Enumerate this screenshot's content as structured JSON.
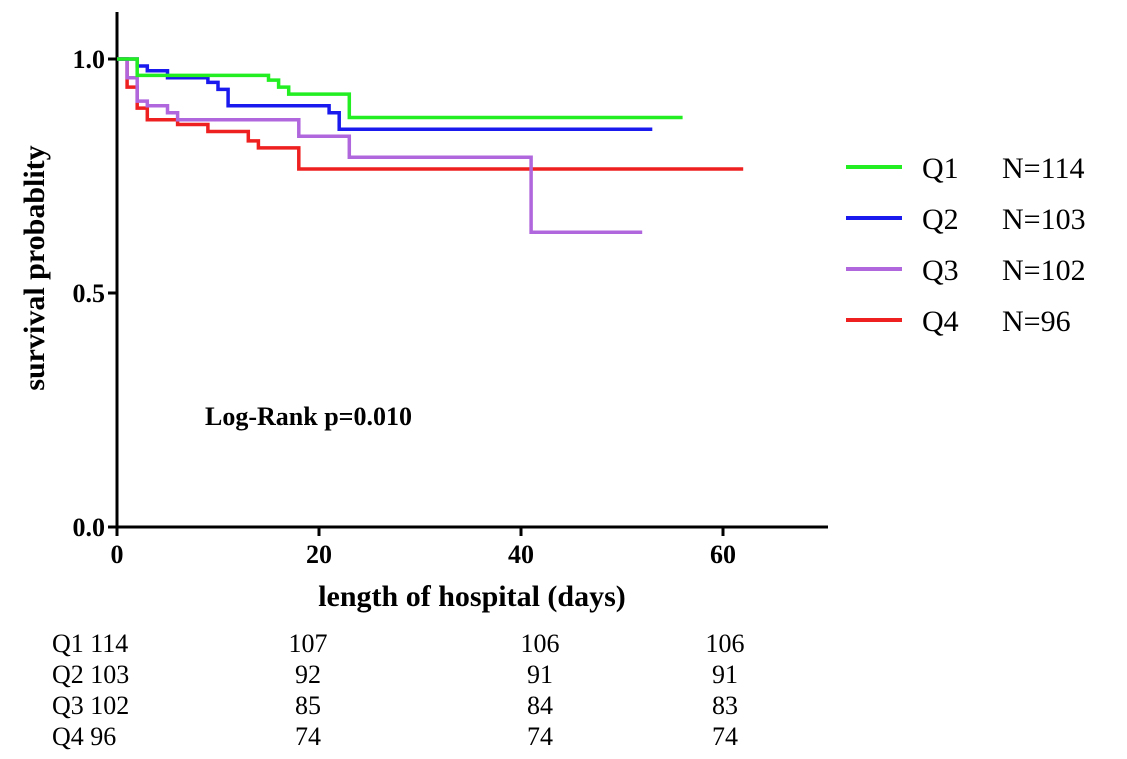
{
  "chart_data": {
    "type": "line",
    "subtype": "kaplan-meier step",
    "xlabel": "length of hospital (days)",
    "ylabel": "survival probablity",
    "xlim": [
      0,
      70
    ],
    "ylim": [
      0,
      1.1
    ],
    "x_ticks": [
      0,
      20,
      40,
      60
    ],
    "y_ticks": [
      0.0,
      0.5,
      1.0
    ],
    "y_tick_labels": [
      "0.0",
      "0.5",
      "1.0"
    ],
    "grid": false,
    "annotation": "Log-Rank p=0.010",
    "legend_position": "right",
    "series": [
      {
        "name": "Q1",
        "n_label": "N=114",
        "color": "#22ee22",
        "points": [
          [
            0,
            1.0
          ],
          [
            2,
            1.0
          ],
          [
            2,
            0.965
          ],
          [
            15,
            0.965
          ],
          [
            15,
            0.955
          ],
          [
            16,
            0.955
          ],
          [
            16,
            0.94
          ],
          [
            17,
            0.94
          ],
          [
            17,
            0.925
          ],
          [
            23,
            0.925
          ],
          [
            23,
            0.875
          ],
          [
            56,
            0.875
          ]
        ]
      },
      {
        "name": "Q2",
        "n_label": "N=103",
        "color": "#1a1aee",
        "points": [
          [
            0,
            1.0
          ],
          [
            2,
            1.0
          ],
          [
            2,
            0.985
          ],
          [
            3,
            0.985
          ],
          [
            3,
            0.975
          ],
          [
            5,
            0.975
          ],
          [
            5,
            0.96
          ],
          [
            9,
            0.96
          ],
          [
            9,
            0.95
          ],
          [
            10,
            0.95
          ],
          [
            10,
            0.935
          ],
          [
            11,
            0.935
          ],
          [
            11,
            0.9
          ],
          [
            21,
            0.9
          ],
          [
            21,
            0.885
          ],
          [
            22,
            0.885
          ],
          [
            22,
            0.85
          ],
          [
            53,
            0.85
          ]
        ]
      },
      {
        "name": "Q3",
        "n_label": "N=102",
        "color": "#b066dd",
        "points": [
          [
            0,
            1.0
          ],
          [
            1,
            1.0
          ],
          [
            1,
            0.96
          ],
          [
            2,
            0.96
          ],
          [
            2,
            0.91
          ],
          [
            3,
            0.91
          ],
          [
            3,
            0.9
          ],
          [
            5,
            0.9
          ],
          [
            5,
            0.885
          ],
          [
            6,
            0.885
          ],
          [
            6,
            0.87
          ],
          [
            18,
            0.87
          ],
          [
            18,
            0.835
          ],
          [
            23,
            0.835
          ],
          [
            23,
            0.79
          ],
          [
            41,
            0.79
          ],
          [
            41,
            0.63
          ],
          [
            52,
            0.63
          ]
        ]
      },
      {
        "name": "Q4",
        "n_label": "N=96",
        "color": "#ee2020",
        "points": [
          [
            0,
            1.0
          ],
          [
            1,
            1.0
          ],
          [
            1,
            0.94
          ],
          [
            2,
            0.94
          ],
          [
            2,
            0.895
          ],
          [
            3,
            0.895
          ],
          [
            3,
            0.87
          ],
          [
            6,
            0.87
          ],
          [
            6,
            0.86
          ],
          [
            9,
            0.86
          ],
          [
            9,
            0.845
          ],
          [
            13,
            0.845
          ],
          [
            13,
            0.825
          ],
          [
            14,
            0.825
          ],
          [
            14,
            0.81
          ],
          [
            18,
            0.81
          ],
          [
            18,
            0.765
          ],
          [
            62,
            0.765
          ]
        ]
      }
    ],
    "risk_table": {
      "times": [
        0,
        20,
        40,
        60
      ],
      "rows": [
        {
          "name": "Q1",
          "counts": [
            "114",
            "107",
            "106",
            "106"
          ]
        },
        {
          "name": "Q2",
          "counts": [
            "103",
            "92",
            "91",
            "91"
          ]
        },
        {
          "name": "Q3",
          "counts": [
            "102",
            "85",
            "84",
            "83"
          ]
        },
        {
          "name": "Q4",
          "counts": [
            "96",
            "74",
            "74",
            "74"
          ]
        }
      ]
    }
  }
}
